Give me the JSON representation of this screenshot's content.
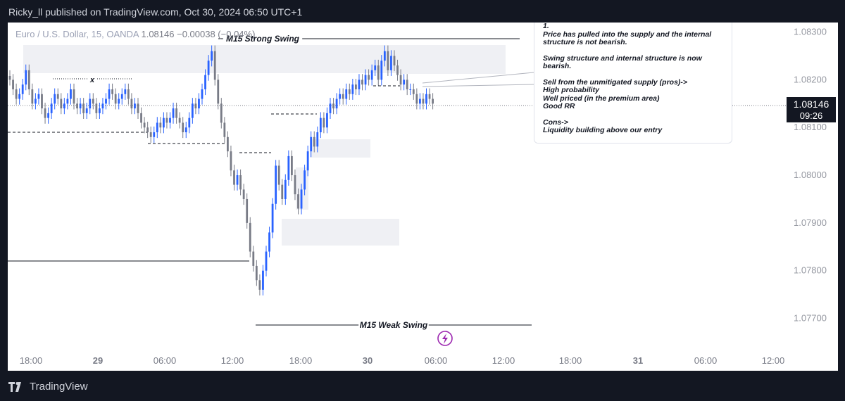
{
  "header": {
    "published": "Ricky_ll published on TradingView.com, Oct 30, 2024 06:50 UTC+1"
  },
  "footer": {
    "brand": "TradingView"
  },
  "legend": {
    "symbol": "Euro / U.S. Dollar, 15, OANDA",
    "price": "1.08146",
    "change": "−0.00038 (−0.04%)"
  },
  "price_tag": {
    "price": "1.08146",
    "countdown": "09:26"
  },
  "note": {
    "lines": [
      "1.",
      "Price has pulled into the supply and the internal",
      "structure is not bearish.",
      "",
      "Swing structure and internal structure is now",
      "bearish.",
      "",
      "Sell from the unmitigated supply (pros)->",
      "High probability",
      "Well priced (in the premium area)",
      "Good RR",
      "",
      "Cons->",
      "Liquidity building above our entry"
    ]
  },
  "annotations": {
    "strong_swing": "M15 Strong Swing",
    "weak_swing": "M15 Weak Swing",
    "x_marker": "x"
  },
  "colors": {
    "bull": "#2962ff",
    "bear": "#787b86",
    "zone": "#eff0f4",
    "line": "#131722",
    "accent": "#9c27b0"
  },
  "chart_data": {
    "type": "candlestick",
    "symbol": "EURUSD",
    "timeframe": "15",
    "y_ticks": [
      1.083,
      1.082,
      1.081,
      1.08,
      1.079,
      1.078,
      1.077
    ],
    "y_tick_labels": [
      "1.08300",
      "1.08200",
      "1.08100",
      "1.08000",
      "1.07900",
      "1.07800",
      "1.07700"
    ],
    "ylim": [
      1.0763,
      1.0832
    ],
    "x_ticks": [
      {
        "label": "18:00",
        "bold": false
      },
      {
        "label": "29",
        "bold": true
      },
      {
        "label": "06:00",
        "bold": false
      },
      {
        "label": "12:00",
        "bold": false
      },
      {
        "label": "18:00",
        "bold": false
      },
      {
        "label": "30",
        "bold": true
      },
      {
        "label": "06:00",
        "bold": false
      },
      {
        "label": "12:00",
        "bold": false
      },
      {
        "label": "18:00",
        "bold": false
      },
      {
        "label": "31",
        "bold": true
      },
      {
        "label": "06:00",
        "bold": false
      },
      {
        "label": "12:00",
        "bold": false
      }
    ],
    "last_price": 1.08146,
    "swing_levels": {
      "strong_high": 1.0827,
      "weak_low": 1.0769
    },
    "candles_close": [
      1.082,
      1.0818,
      1.0816,
      1.0817,
      1.0819,
      1.0822,
      1.0818,
      1.0815,
      1.0816,
      1.0817,
      1.0814,
      1.0812,
      1.0813,
      1.0815,
      1.0817,
      1.0816,
      1.0814,
      1.0815,
      1.0816,
      1.0818,
      1.0815,
      1.0814,
      1.0815,
      1.0813,
      1.0814,
      1.0816,
      1.0815,
      1.0813,
      1.0814,
      1.0815,
      1.0816,
      1.0818,
      1.0817,
      1.0815,
      1.0816,
      1.0817,
      1.0818,
      1.0816,
      1.0814,
      1.0815,
      1.0813,
      1.0811,
      1.081,
      1.0809,
      1.0808,
      1.0809,
      1.0811,
      1.081,
      1.0812,
      1.0811,
      1.0812,
      1.0814,
      1.0812,
      1.0811,
      1.0809,
      1.081,
      1.0812,
      1.0815,
      1.0814,
      1.0816,
      1.0818,
      1.0821,
      1.0824,
      1.0826,
      1.082,
      1.0815,
      1.0811,
      1.0808,
      1.0805,
      1.0801,
      1.0798,
      1.08,
      1.0797,
      1.0795,
      1.079,
      1.0784,
      1.0781,
      1.0778,
      1.0776,
      1.078,
      1.0784,
      1.0788,
      1.0794,
      1.0802,
      1.0798,
      1.0795,
      1.0799,
      1.0804,
      1.08,
      1.0796,
      1.0793,
      1.0797,
      1.0801,
      1.0805,
      1.0808,
      1.0806,
      1.0809,
      1.0812,
      1.081,
      1.0813,
      1.0815,
      1.0814,
      1.0816,
      1.0817,
      1.0816,
      1.0818,
      1.0817,
      1.0819,
      1.0818,
      1.082,
      1.0819,
      1.0821,
      1.082,
      1.0822,
      1.0823,
      1.082,
      1.0824,
      1.0826,
      1.0822,
      1.0825,
      1.0823,
      1.0821,
      1.0819,
      1.082,
      1.0818,
      1.0818,
      1.0817,
      1.0815,
      1.0816,
      1.0815,
      1.0817,
      1.0816,
      1.0815
    ]
  }
}
